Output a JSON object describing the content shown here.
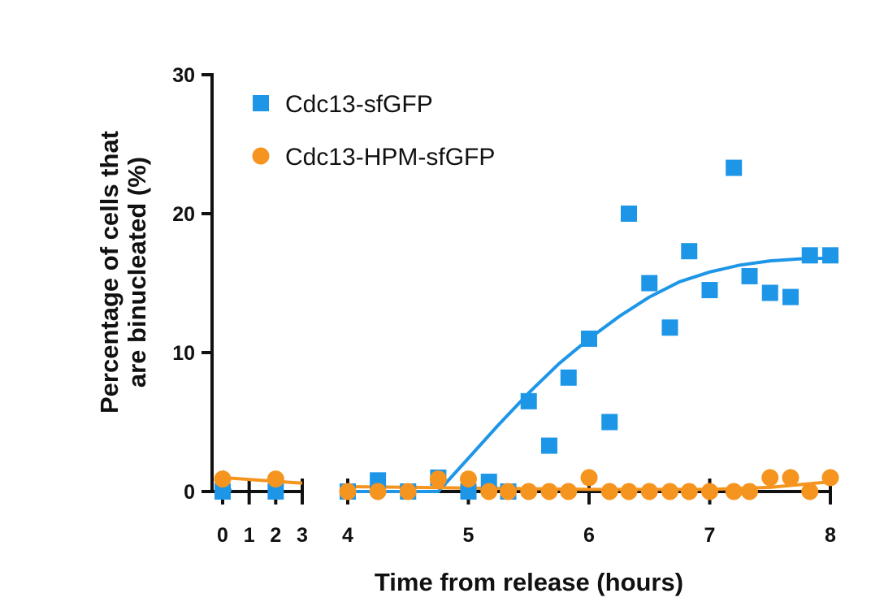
{
  "chart_data": {
    "type": "scatter",
    "xlabel": "Time from release (hours)",
    "ylabel_line1": "Percentage of cells that",
    "ylabel_line2": "are binucleated (%)",
    "xlim_segment1": [
      0,
      3
    ],
    "xlim_segment2": [
      4,
      8
    ],
    "x_ticks_segment1": [
      "0",
      "1",
      "2",
      "3"
    ],
    "x_ticks_segment2": [
      "4",
      "5",
      "6",
      "7",
      "8"
    ],
    "ylim": [
      0,
      30
    ],
    "y_ticks": [
      "0",
      "10",
      "20",
      "30"
    ],
    "grid": false,
    "legend_position": "top-left",
    "series": [
      {
        "name": "Cdc13-sfGFP",
        "color": "#1e96e8",
        "marker": "square",
        "points": [
          [
            0,
            0
          ],
          [
            2,
            0
          ],
          [
            4,
            0
          ],
          [
            4.25,
            0.8
          ],
          [
            4.5,
            0
          ],
          [
            4.75,
            1
          ],
          [
            5,
            0
          ],
          [
            5.17,
            0.7
          ],
          [
            5.33,
            0
          ],
          [
            5.5,
            6.5
          ],
          [
            5.67,
            3.3
          ],
          [
            5.83,
            8.2
          ],
          [
            6,
            11
          ],
          [
            6.17,
            5
          ],
          [
            6.33,
            20
          ],
          [
            6.5,
            15
          ],
          [
            6.67,
            11.8
          ],
          [
            6.83,
            17.3
          ],
          [
            7,
            14.5
          ],
          [
            7.2,
            23.3
          ],
          [
            7.33,
            15.5
          ],
          [
            7.5,
            14.3
          ],
          [
            7.67,
            14
          ],
          [
            7.83,
            17
          ],
          [
            8,
            17
          ]
        ],
        "fit_segment1": [
          [
            0,
            1.5
          ],
          [
            0.3,
            0
          ]
        ],
        "fit_segment2": [
          [
            4,
            0
          ],
          [
            4.5,
            0
          ],
          [
            4.75,
            0
          ],
          [
            5,
            2.4
          ],
          [
            5.25,
            4.8
          ],
          [
            5.5,
            7.1
          ],
          [
            5.75,
            9.2
          ],
          [
            6,
            11
          ],
          [
            6.25,
            12.6
          ],
          [
            6.5,
            14
          ],
          [
            6.75,
            15.1
          ],
          [
            7,
            15.8
          ],
          [
            7.25,
            16.3
          ],
          [
            7.5,
            16.6
          ],
          [
            7.75,
            16.75
          ],
          [
            8,
            16.8
          ]
        ]
      },
      {
        "name": "Cdc13-HPM-sfGFP",
        "color": "#f5951f",
        "marker": "circle",
        "points": [
          [
            0,
            0.9
          ],
          [
            2,
            0.9
          ],
          [
            4,
            0
          ],
          [
            4.25,
            0
          ],
          [
            4.5,
            0
          ],
          [
            4.75,
            0.9
          ],
          [
            5,
            0.9
          ],
          [
            5.17,
            0
          ],
          [
            5.33,
            0
          ],
          [
            5.5,
            0
          ],
          [
            5.67,
            0
          ],
          [
            5.83,
            0
          ],
          [
            6,
            1
          ],
          [
            6.17,
            0
          ],
          [
            6.33,
            0
          ],
          [
            6.5,
            0
          ],
          [
            6.67,
            0
          ],
          [
            6.83,
            0
          ],
          [
            7,
            0
          ],
          [
            7.2,
            0
          ],
          [
            7.33,
            0
          ],
          [
            7.5,
            1
          ],
          [
            7.67,
            1
          ],
          [
            7.83,
            0
          ],
          [
            8,
            1
          ]
        ],
        "fit_segment1": [
          [
            0,
            1
          ],
          [
            3,
            0.6
          ]
        ],
        "fit_segment2": [
          [
            4,
            0.35
          ],
          [
            5,
            0.25
          ],
          [
            6,
            0.15
          ],
          [
            7,
            0.15
          ],
          [
            7.5,
            0.3
          ],
          [
            8,
            0.7
          ]
        ]
      }
    ]
  }
}
